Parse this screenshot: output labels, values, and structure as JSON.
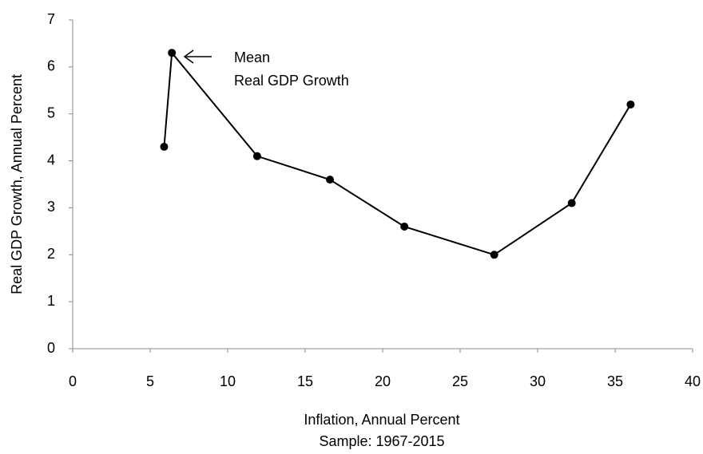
{
  "chart_data": {
    "type": "line",
    "x_label": "Inflation, Annual Percent",
    "subtitle": "Sample: 1967-2015",
    "y_label": "Real GDP Growth, Annual Percent",
    "annotation": [
      "Mean",
      "Real GDP Growth"
    ],
    "x": [
      5.9,
      6.4,
      11.9,
      16.6,
      21.4,
      27.2,
      32.2,
      36.0
    ],
    "series": [
      {
        "name": "Mean Real GDP Growth",
        "color": "#000000",
        "values": [
          4.3,
          6.3,
          4.1,
          3.6,
          2.6,
          2.0,
          3.1,
          5.2
        ]
      }
    ],
    "xlim": [
      0,
      40
    ],
    "xticks": [
      0,
      5,
      10,
      15,
      20,
      25,
      30,
      35,
      40
    ],
    "ylim": [
      0,
      7
    ],
    "yticks": [
      0,
      1,
      2,
      3,
      4,
      5,
      6,
      7
    ],
    "grid": false
  }
}
